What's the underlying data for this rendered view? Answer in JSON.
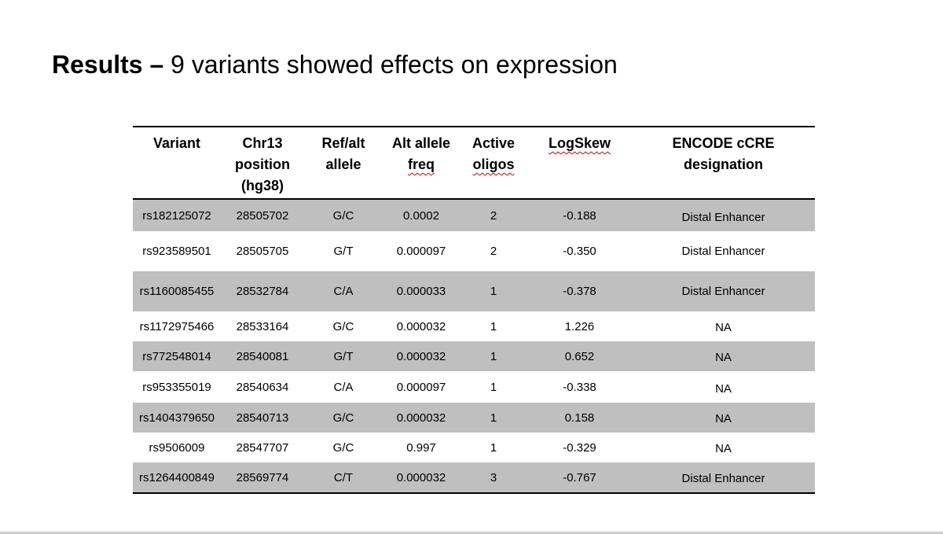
{
  "slide": {
    "title_bold": "Results –",
    "title_rest": " 9 variants showed effects on expression"
  },
  "table": {
    "headers": [
      [
        "Variant"
      ],
      [
        "Chr13",
        "position",
        "(hg38)"
      ],
      [
        "Ref/alt",
        "allele"
      ],
      [
        "Alt allele",
        "freq"
      ],
      [
        "Active",
        "oligos"
      ],
      [
        "LogSkew"
      ],
      [
        "ENCODE cCRE",
        "designation"
      ]
    ],
    "rows": [
      [
        "rs182125072",
        "28505702",
        "G/C",
        "0.0002",
        "2",
        "-0.188",
        "Distal Enhancer"
      ],
      [
        "rs923589501",
        "28505705",
        "G/T",
        "0.000097",
        "2",
        "-0.350",
        "Distal Enhancer"
      ],
      [
        "rs1160085455",
        "28532784",
        "C/A",
        "0.000033",
        "1",
        "-0.378",
        "Distal Enhancer"
      ],
      [
        "rs1172975466",
        "28533164",
        "G/C",
        "0.000032",
        "1",
        "1.226",
        "NA"
      ],
      [
        "rs772548014",
        "28540081",
        "G/T",
        "0.000032",
        "1",
        "0.652",
        "NA"
      ],
      [
        "rs953355019",
        "28540634",
        "C/A",
        "0.000097",
        "1",
        "-0.338",
        "NA"
      ],
      [
        "rs1404379650",
        "28540713",
        "G/C",
        "0.000032",
        "1",
        "0.158",
        "NA"
      ],
      [
        "rs9506009",
        "28547707",
        "G/C",
        "0.997",
        "1",
        "-0.329",
        "NA"
      ],
      [
        "rs1264400849",
        "28569774",
        "C/T",
        "0.000032",
        "3",
        "-0.767",
        "Distal Enhancer"
      ]
    ]
  }
}
